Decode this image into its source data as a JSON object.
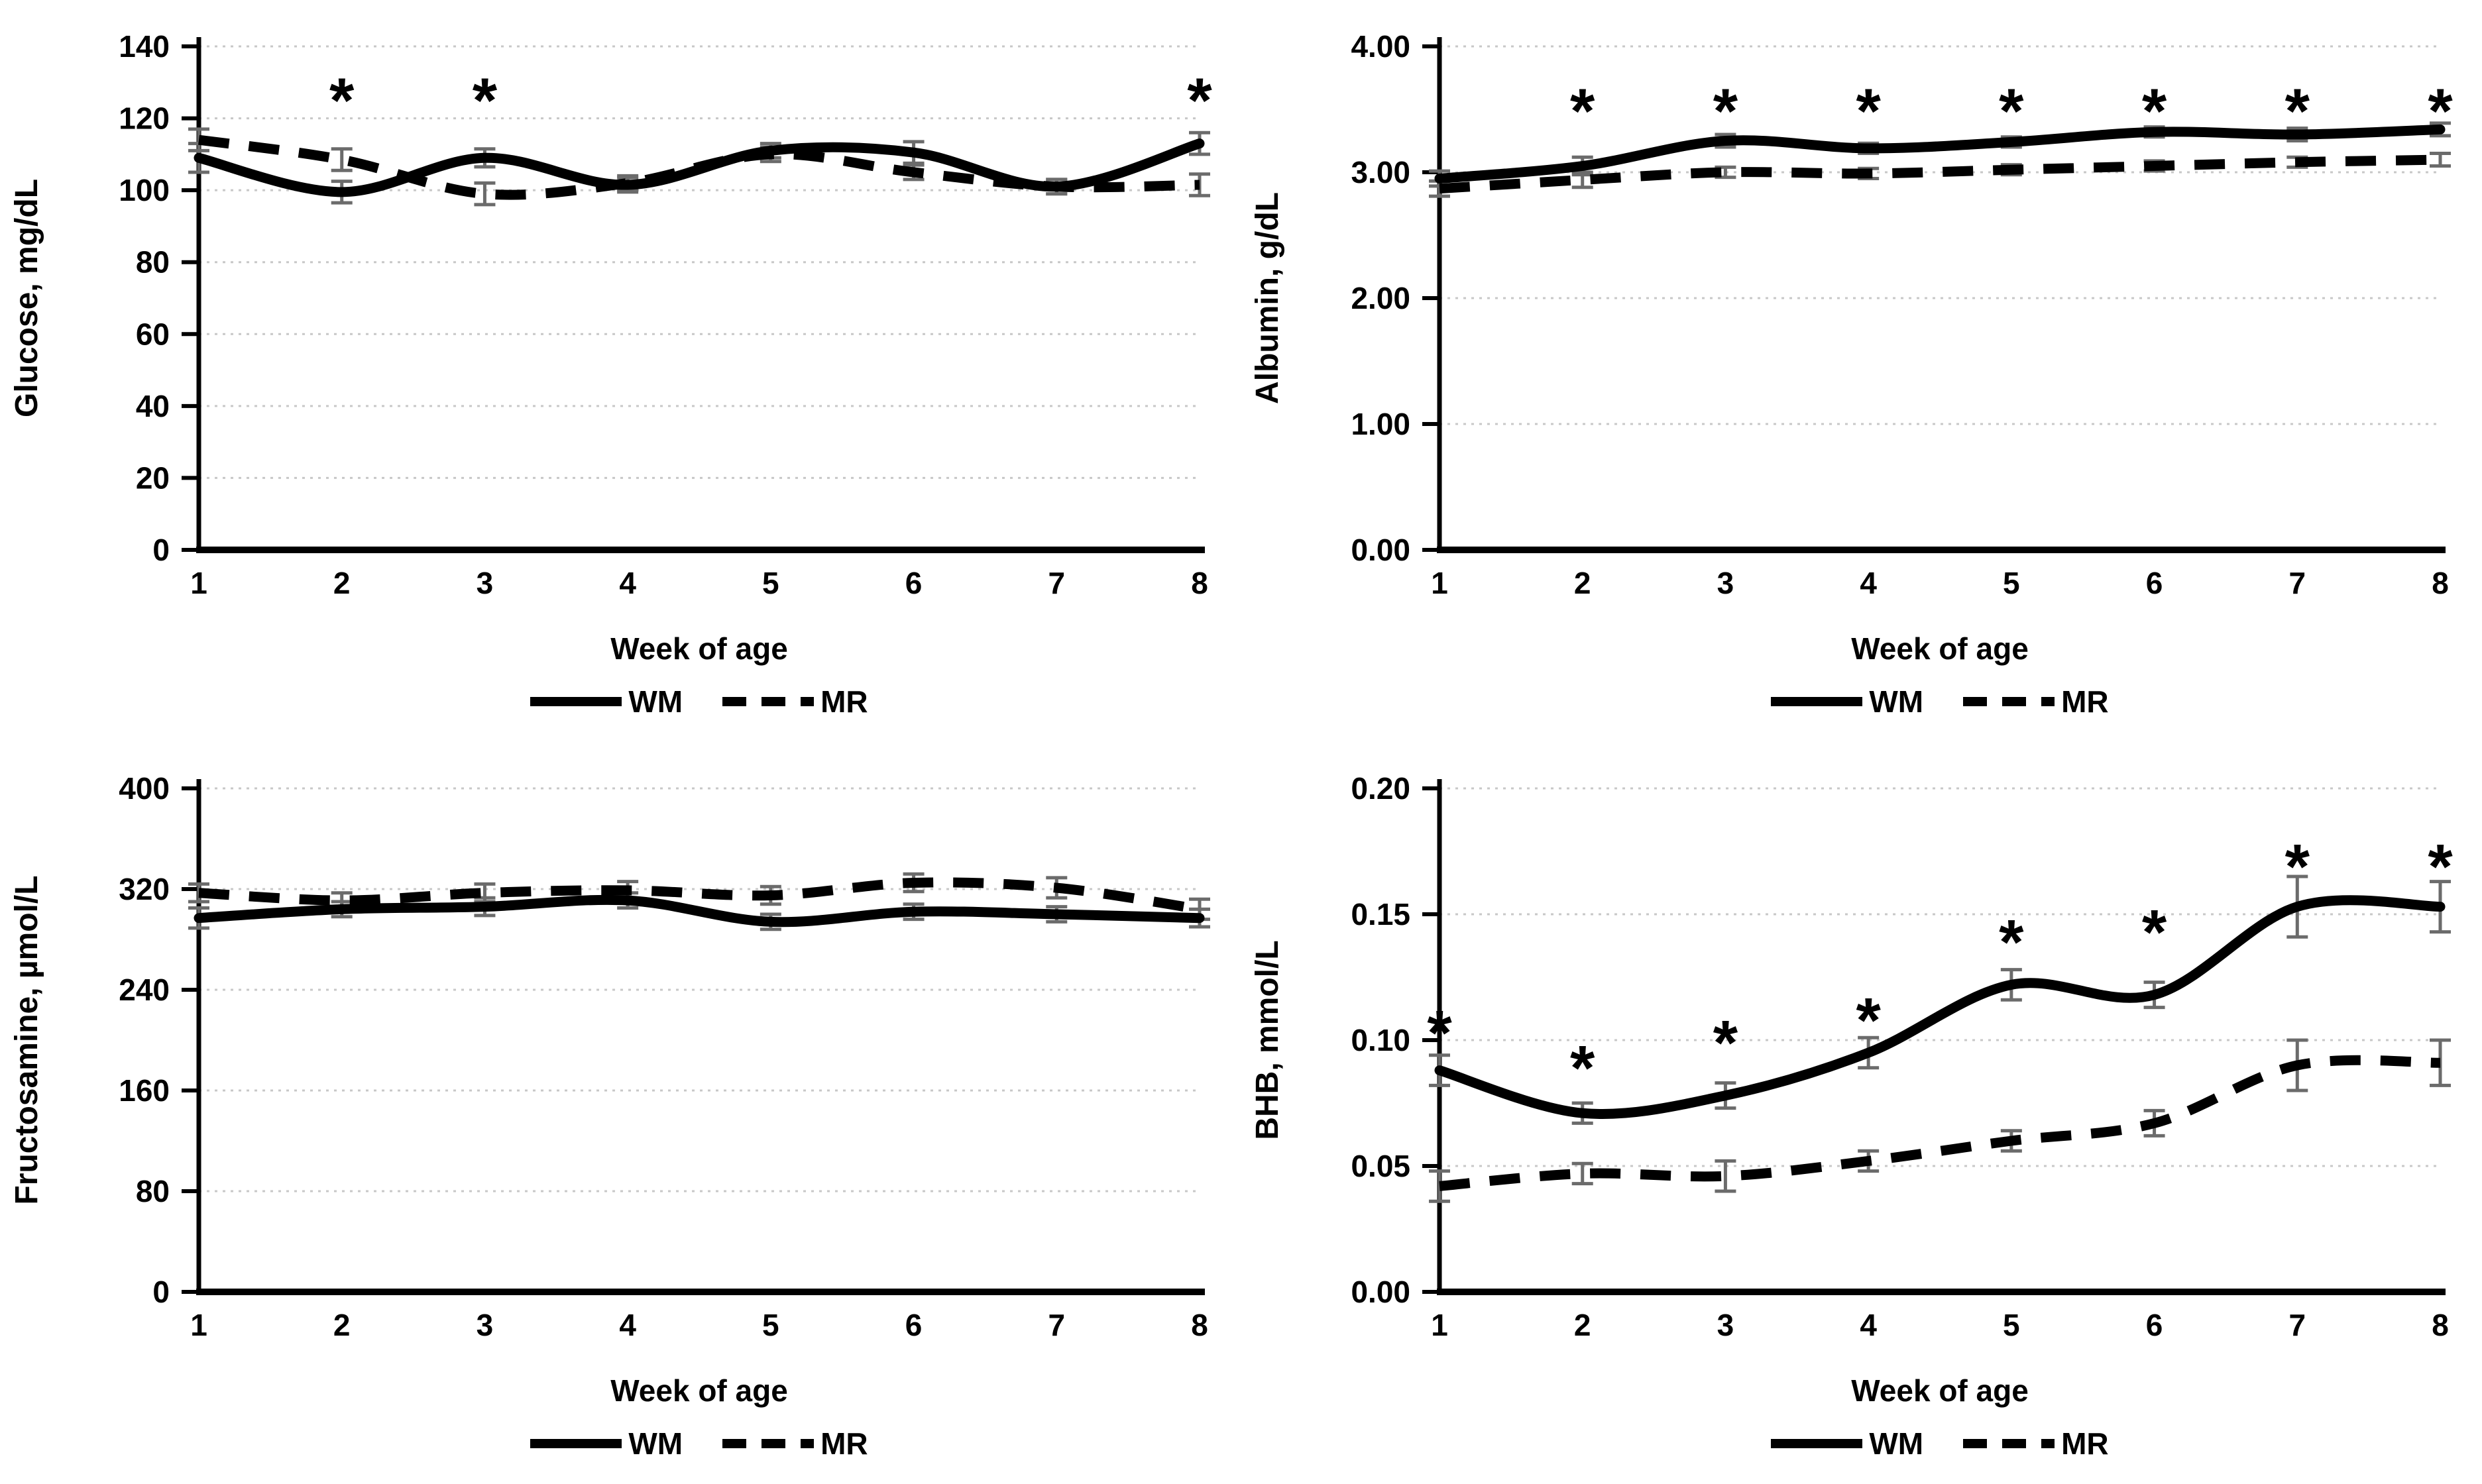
{
  "figure": {
    "description": "Four-panel line figure of blood metabolites by week of age for WM (solid) and MR (dashed) groups",
    "significance_marker": "*",
    "colors": {
      "line": "#000000",
      "error_bar": "#6b6b6b",
      "gridline": "#c8c8c8"
    }
  },
  "chart_data": [
    {
      "type": "line",
      "id": "glucose",
      "ylabel": "Glucose, mg/dL",
      "xlabel": "Week of age",
      "x": [
        1,
        2,
        3,
        4,
        5,
        6,
        7,
        8
      ],
      "ylim": [
        0,
        140
      ],
      "ytick_values": [
        0,
        20,
        40,
        60,
        80,
        100,
        120,
        140
      ],
      "ytick_labels": [
        "0",
        "20",
        "40",
        "60",
        "80",
        "100",
        "120",
        "140"
      ],
      "xtick_labels": [
        "1",
        "2",
        "3",
        "4",
        "5",
        "6",
        "7",
        "8"
      ],
      "grid": true,
      "legend_position": "bottom",
      "series": [
        {
          "name": "WM",
          "style": "solid",
          "values": [
            109,
            99.5,
            109,
            101.5,
            111,
            110.5,
            101,
            113
          ],
          "errors": [
            4,
            3,
            2.5,
            2,
            2,
            3,
            2,
            3
          ]
        },
        {
          "name": "MR",
          "style": "dashed",
          "values": [
            114,
            108.5,
            99,
            102,
            110,
            105,
            101,
            101.5
          ],
          "errors": [
            3,
            3,
            3,
            2,
            2,
            2,
            2,
            3
          ]
        }
      ],
      "asterisks": [
        {
          "week": 2,
          "y": 130
        },
        {
          "week": 3,
          "y": 130
        },
        {
          "week": 8,
          "y": 130
        }
      ]
    },
    {
      "type": "line",
      "id": "albumin",
      "ylabel": "Albumin, g/dL",
      "xlabel": "Week of age",
      "x": [
        1,
        2,
        3,
        4,
        5,
        6,
        7,
        8
      ],
      "ylim": [
        0,
        4
      ],
      "ytick_values": [
        0,
        1,
        2,
        3,
        4
      ],
      "ytick_labels": [
        "0.00",
        "1.00",
        "2.00",
        "3.00",
        "4.00"
      ],
      "xtick_labels": [
        "1",
        "2",
        "3",
        "4",
        "5",
        "6",
        "7",
        "8"
      ],
      "grid": true,
      "legend_position": "bottom",
      "series": [
        {
          "name": "WM",
          "style": "solid",
          "values": [
            2.95,
            3.05,
            3.25,
            3.19,
            3.24,
            3.32,
            3.3,
            3.34
          ],
          "errors": [
            0.06,
            0.07,
            0.05,
            0.04,
            0.04,
            0.04,
            0.05,
            0.05
          ]
        },
        {
          "name": "MR",
          "style": "dashed",
          "values": [
            2.87,
            2.94,
            3.0,
            2.99,
            3.02,
            3.05,
            3.08,
            3.1
          ],
          "errors": [
            0.06,
            0.06,
            0.04,
            0.04,
            0.04,
            0.04,
            0.04,
            0.05
          ]
        }
      ],
      "asterisks": [
        {
          "week": 2,
          "y": 3.63
        },
        {
          "week": 3,
          "y": 3.63
        },
        {
          "week": 4,
          "y": 3.63
        },
        {
          "week": 5,
          "y": 3.63
        },
        {
          "week": 6,
          "y": 3.63
        },
        {
          "week": 7,
          "y": 3.63
        },
        {
          "week": 8,
          "y": 3.63
        }
      ]
    },
    {
      "type": "line",
      "id": "fructosamine",
      "ylabel": "Fructosamine, µmol/L",
      "xlabel": "Week of age",
      "x": [
        1,
        2,
        3,
        4,
        5,
        6,
        7,
        8
      ],
      "ylim": [
        0,
        400
      ],
      "ytick_values": [
        0,
        80,
        160,
        240,
        320,
        400
      ],
      "ytick_labels": [
        "0",
        "80",
        "160",
        "240",
        "320",
        "400"
      ],
      "xtick_labels": [
        "1",
        "2",
        "3",
        "4",
        "5",
        "6",
        "7",
        "8"
      ],
      "grid": true,
      "legend_position": "bottom",
      "series": [
        {
          "name": "WM",
          "style": "solid",
          "values": [
            297,
            304,
            306,
            311,
            294,
            302,
            300,
            297
          ],
          "errors": [
            8,
            6,
            7,
            6,
            6,
            6,
            6,
            7
          ]
        },
        {
          "name": "MR",
          "style": "dashed",
          "values": [
            317,
            311,
            317,
            319,
            315,
            325,
            321,
            304
          ],
          "errors": [
            7,
            6,
            7,
            7,
            7,
            7,
            8,
            8
          ]
        }
      ],
      "asterisks": []
    },
    {
      "type": "line",
      "id": "bhb",
      "ylabel": "BHB, mmol/L",
      "xlabel": "Week of age",
      "x": [
        1,
        2,
        3,
        4,
        5,
        6,
        7,
        8
      ],
      "ylim": [
        0,
        0.2
      ],
      "ytick_values": [
        0,
        0.05,
        0.1,
        0.15,
        0.2
      ],
      "ytick_labels": [
        "0.00",
        "0.05",
        "0.10",
        "0.15",
        "0.20"
      ],
      "xtick_labels": [
        "1",
        "2",
        "3",
        "4",
        "5",
        "6",
        "7",
        "8"
      ],
      "grid": true,
      "legend_position": "bottom",
      "series": [
        {
          "name": "WM",
          "style": "solid",
          "values": [
            0.088,
            0.071,
            0.078,
            0.095,
            0.122,
            0.118,
            0.153,
            0.153
          ],
          "errors": [
            0.006,
            0.004,
            0.005,
            0.006,
            0.006,
            0.005,
            0.012,
            0.01
          ]
        },
        {
          "name": "MR",
          "style": "dashed",
          "values": [
            0.042,
            0.047,
            0.046,
            0.052,
            0.06,
            0.067,
            0.09,
            0.091
          ],
          "errors": [
            0.006,
            0.004,
            0.006,
            0.004,
            0.004,
            0.005,
            0.01,
            0.009
          ]
        }
      ],
      "asterisks": [
        {
          "week": 1,
          "y": 0.11
        },
        {
          "week": 2,
          "y": 0.096
        },
        {
          "week": 3,
          "y": 0.106
        },
        {
          "week": 4,
          "y": 0.115
        },
        {
          "week": 5,
          "y": 0.146
        },
        {
          "week": 6,
          "y": 0.15
        },
        {
          "week": 7,
          "y": 0.176
        },
        {
          "week": 8,
          "y": 0.176
        }
      ]
    }
  ]
}
